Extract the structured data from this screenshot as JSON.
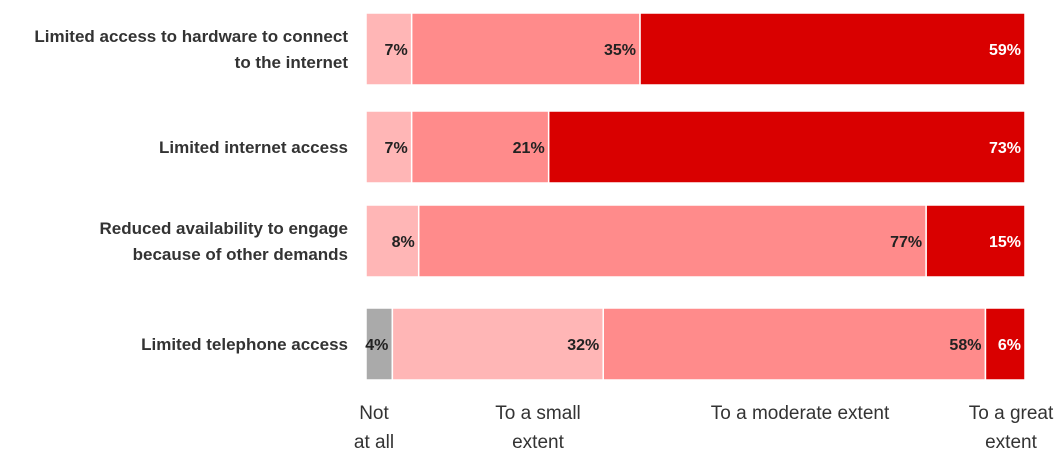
{
  "chart_data": {
    "type": "bar",
    "orientation": "horizontal",
    "stacked": true,
    "grid": false,
    "legend_position": "bottom",
    "categories": [
      [
        "Limited access to hardware to connect",
        "to the internet"
      ],
      [
        "Limited internet access"
      ],
      [
        "Reduced availability to engage",
        "because of other demands"
      ],
      [
        "Limited telephone access"
      ]
    ],
    "series": [
      {
        "name": "Not at all",
        "name_lines": [
          "Not",
          "at all"
        ],
        "values": [
          0,
          0,
          0,
          4
        ]
      },
      {
        "name": "To a small extent",
        "name_lines": [
          "To a small",
          "extent"
        ],
        "values": [
          7,
          7,
          8,
          32
        ]
      },
      {
        "name": "To a moderate extent",
        "name_lines": [
          "To a moderate extent"
        ],
        "values": [
          35,
          21,
          77,
          58
        ]
      },
      {
        "name": "To a great extent",
        "name_lines": [
          "To a great",
          "extent"
        ],
        "values": [
          59,
          73,
          15,
          6
        ]
      }
    ],
    "value_labels": [
      [
        "",
        "7%",
        "35%",
        "59%"
      ],
      [
        "",
        "7%",
        "21%",
        "73%"
      ],
      [
        "",
        "8%",
        "77%",
        "15%"
      ],
      [
        "4%",
        "32%",
        "58%",
        "6%"
      ]
    ],
    "colors": {
      "series": [
        "#aaaaaa",
        "#ffb6b6",
        "#ff8b8b",
        "#d90000"
      ],
      "label_text": [
        "#222222",
        "#222222",
        "#222222",
        "#ffffff"
      ]
    }
  }
}
